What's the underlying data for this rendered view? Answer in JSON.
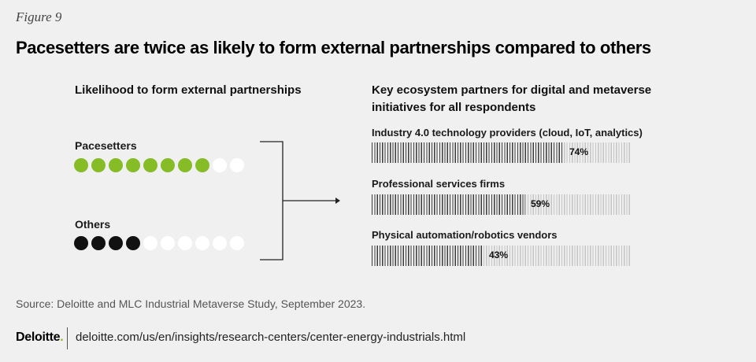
{
  "figure_label": "Figure 9",
  "title": "Pacesetters are twice as likely to form external partnerships compared to others",
  "colors": {
    "pacesetters": "#86bc25",
    "others": "#111111",
    "empty": "#ffffff",
    "bar_fill": "#3a3a3a",
    "bar_track": "#c4c4c4"
  },
  "left_panel": {
    "heading": "Likelihood to form external partnerships",
    "groups": [
      {
        "label": "Pacesetters",
        "filled": 8,
        "total": 10
      },
      {
        "label": "Others",
        "filled": 4,
        "total": 10
      }
    ]
  },
  "chart_data": [
    {
      "type": "pictogram",
      "title": "Likelihood to form external partnerships",
      "categories": [
        "Pacesetters",
        "Others"
      ],
      "values": [
        8,
        4
      ],
      "total": 10
    },
    {
      "type": "bar",
      "title": "Key ecosystem partners for digital and metaverse initiatives for all respondents",
      "categories": [
        "Industry 4.0 technology providers (cloud, IoT, analytics)",
        "Professional services firms",
        "Physical automation/robotics vendors"
      ],
      "values": [
        74,
        59,
        43
      ],
      "value_labels": [
        "74%",
        "59%",
        "43%"
      ],
      "ylim": [
        0,
        100
      ],
      "orientation": "horizontal",
      "grid": false
    }
  ],
  "source": "Source: Deloitte and MLC Industrial Metaverse Study, September 2023.",
  "footer": {
    "logo_text": "Deloitte",
    "logo_dot": ".",
    "url": "deloitte.com/us/en/insights/research-centers/center-energy-industrials.html"
  }
}
